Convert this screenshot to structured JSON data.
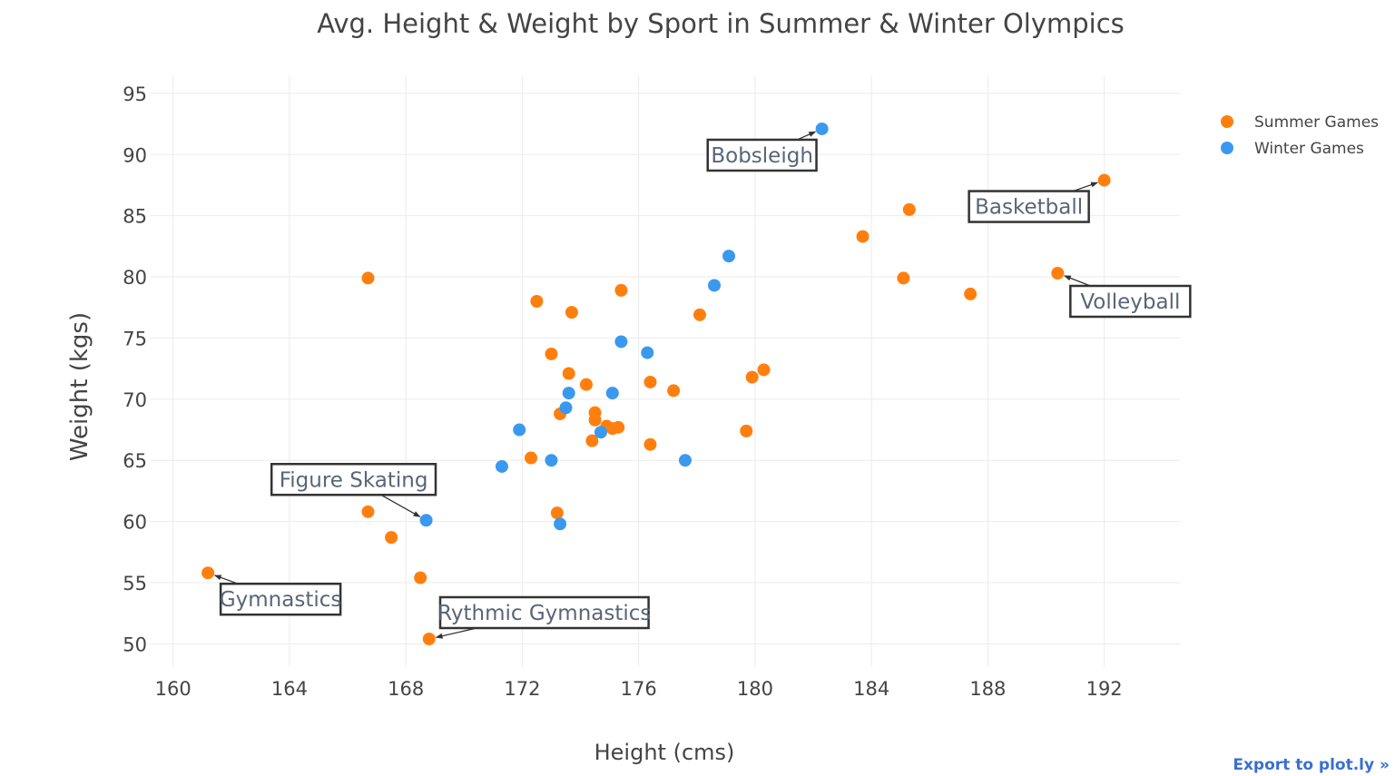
{
  "chart_data": {
    "type": "scatter",
    "title": "Avg. Height & Weight by Sport in Summer & Winter Olympics",
    "xlabel": "Height (cms)",
    "ylabel": "Weight (kgs)",
    "xlim": [
      159.2,
      194.6
    ],
    "ylim": [
      48.1,
      96.4
    ],
    "x_ticks": [
      160,
      164,
      168,
      172,
      176,
      180,
      184,
      188,
      192
    ],
    "y_ticks": [
      50,
      55,
      60,
      65,
      70,
      75,
      80,
      85,
      90,
      95
    ],
    "grid": true,
    "legend_position": "top-right",
    "series": [
      {
        "name": "Summer Games",
        "color": "#ff7f0e",
        "points": [
          [
            161.2,
            55.8
          ],
          [
            166.7,
            79.9
          ],
          [
            166.7,
            60.8
          ],
          [
            167.5,
            58.7
          ],
          [
            168.5,
            55.4
          ],
          [
            168.8,
            50.4
          ],
          [
            172.3,
            65.2
          ],
          [
            172.5,
            78.0
          ],
          [
            173.0,
            73.7
          ],
          [
            173.2,
            60.7
          ],
          [
            173.3,
            68.8
          ],
          [
            173.6,
            72.1
          ],
          [
            173.7,
            77.1
          ],
          [
            174.2,
            71.2
          ],
          [
            174.4,
            66.6
          ],
          [
            174.5,
            68.3
          ],
          [
            174.5,
            68.9
          ],
          [
            174.9,
            67.8
          ],
          [
            175.1,
            67.6
          ],
          [
            175.3,
            67.7
          ],
          [
            175.4,
            78.9
          ],
          [
            176.4,
            71.4
          ],
          [
            176.4,
            66.3
          ],
          [
            177.2,
            70.7
          ],
          [
            178.1,
            76.9
          ],
          [
            179.7,
            67.4
          ],
          [
            179.9,
            71.8
          ],
          [
            180.3,
            72.4
          ],
          [
            183.7,
            83.3
          ],
          [
            185.1,
            79.9
          ],
          [
            185.3,
            85.5
          ],
          [
            187.4,
            78.6
          ],
          [
            190.4,
            80.3
          ],
          [
            192.0,
            87.9
          ]
        ]
      },
      {
        "name": "Winter Games",
        "color": "#3a99ef",
        "points": [
          [
            168.7,
            60.1
          ],
          [
            171.3,
            64.5
          ],
          [
            171.9,
            67.5
          ],
          [
            173.0,
            65.0
          ],
          [
            173.3,
            59.8
          ],
          [
            173.5,
            69.3
          ],
          [
            173.6,
            70.5
          ],
          [
            174.7,
            67.3
          ],
          [
            175.1,
            70.5
          ],
          [
            175.4,
            74.7
          ],
          [
            176.3,
            73.8
          ],
          [
            177.6,
            65.0
          ],
          [
            178.6,
            79.3
          ],
          [
            179.1,
            81.7
          ],
          [
            182.3,
            92.1
          ]
        ]
      }
    ],
    "annotations": [
      {
        "text": "Bobsleigh",
        "x": 182.3,
        "y": 92.1
      },
      {
        "text": "Basketball",
        "x": 192.0,
        "y": 87.9
      },
      {
        "text": "Volleyball",
        "x": 190.4,
        "y": 80.3
      },
      {
        "text": "Figure Skating",
        "x": 168.7,
        "y": 60.1
      },
      {
        "text": "Gymnastics",
        "x": 161.2,
        "y": 55.8
      },
      {
        "text": "Rythmic Gymnastics",
        "x": 168.8,
        "y": 50.4
      }
    ]
  },
  "footer": {
    "export_link": "Export to plot.ly »"
  }
}
